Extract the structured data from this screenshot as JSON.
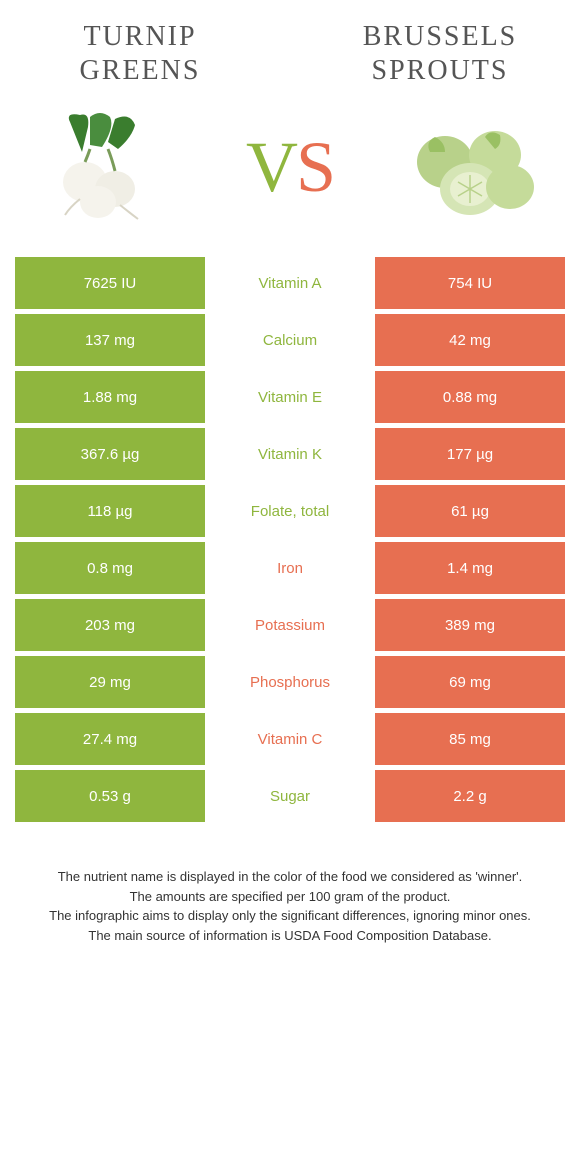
{
  "colors": {
    "left": "#8fb63e",
    "right": "#e76f51",
    "bg": "#ffffff"
  },
  "header": {
    "left_title": "Turnip greens",
    "right_title": "Brussels sprouts"
  },
  "vs": {
    "v": "V",
    "s": "S"
  },
  "rows": [
    {
      "left": "7625 IU",
      "label": "Vitamin A",
      "right": "754 IU",
      "winner": "left"
    },
    {
      "left": "137 mg",
      "label": "Calcium",
      "right": "42 mg",
      "winner": "left"
    },
    {
      "left": "1.88 mg",
      "label": "Vitamin E",
      "right": "0.88 mg",
      "winner": "left"
    },
    {
      "left": "367.6 µg",
      "label": "Vitamin K",
      "right": "177 µg",
      "winner": "left"
    },
    {
      "left": "118 µg",
      "label": "Folate, total",
      "right": "61 µg",
      "winner": "left"
    },
    {
      "left": "0.8 mg",
      "label": "Iron",
      "right": "1.4 mg",
      "winner": "right"
    },
    {
      "left": "203 mg",
      "label": "Potassium",
      "right": "389 mg",
      "winner": "right"
    },
    {
      "left": "29 mg",
      "label": "Phosphorus",
      "right": "69 mg",
      "winner": "right"
    },
    {
      "left": "27.4 mg",
      "label": "Vitamin C",
      "right": "85 mg",
      "winner": "right"
    },
    {
      "left": "0.53 g",
      "label": "Sugar",
      "right": "2.2 g",
      "winner": "left"
    }
  ],
  "footnotes": [
    "The nutrient name is displayed in the color of the food we considered as 'winner'.",
    "The amounts are specified per 100 gram of the product.",
    "The infographic aims to display only the significant differences, ignoring minor ones.",
    "The main source of information is USDA Food Composition Database."
  ]
}
